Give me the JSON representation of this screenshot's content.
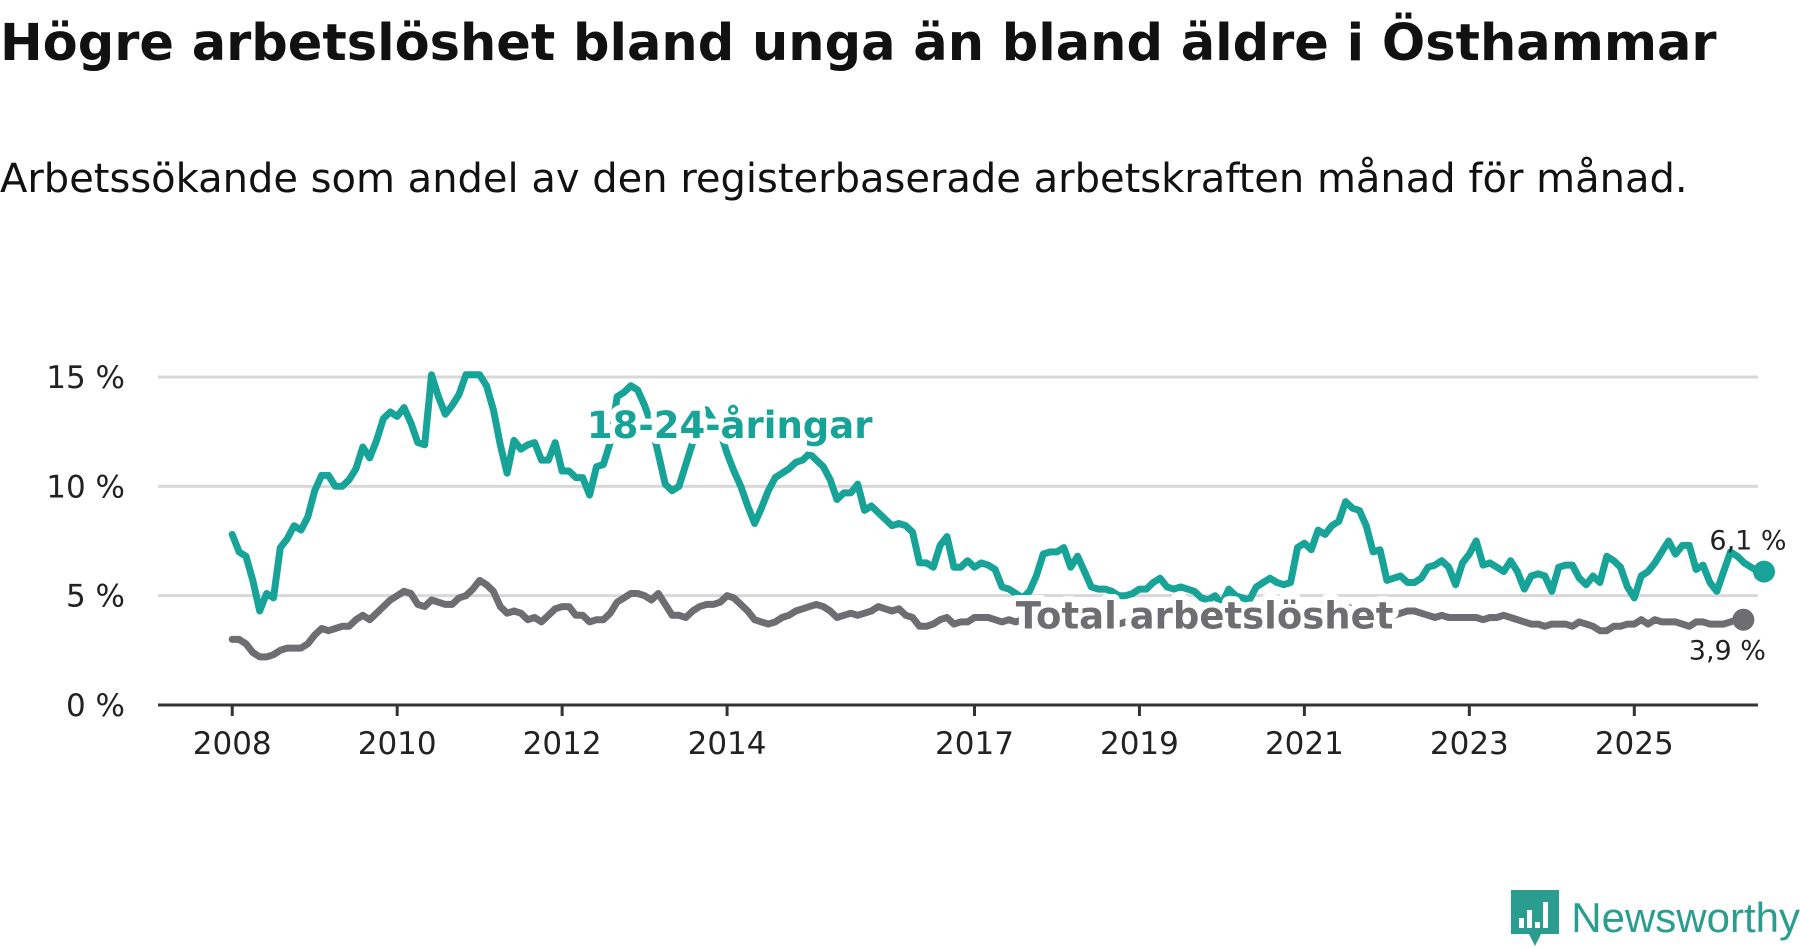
{
  "title": "Högre arbetslöshet bland unga än bland äldre i Östhammar",
  "subtitle": "Arbetssökande som andel av den registerbaserade arbetskraften månad för månad.",
  "brand": {
    "name": "Newsworthy",
    "color": "#2a9d8f",
    "icon": "bar-chart-logo-icon"
  },
  "colors": {
    "youth": "#17a398",
    "total": "#6e6e72",
    "grid": "#d8d8d8",
    "axis": "#333333"
  },
  "chart_data": {
    "type": "line",
    "x_start": 2008.0,
    "x_step": 0.083333,
    "xlim": [
      2007.1,
      2026.5
    ],
    "ylim": [
      0,
      15
    ],
    "yticks": [
      0,
      5,
      10,
      15
    ],
    "ytick_labels": [
      "0 %",
      "5 %",
      "10 %",
      "15 %"
    ],
    "xticks": [
      2008,
      2010,
      2012,
      2014,
      2017,
      2019,
      2021,
      2023,
      2025
    ],
    "xtick_labels": [
      "2008",
      "2010",
      "2012",
      "2014",
      "2017",
      "2019",
      "2021",
      "2023",
      "2025"
    ],
    "series": [
      {
        "name": "18-24-åringar",
        "color": "#17a398",
        "end_label": "6,1 %",
        "values": [
          7.8,
          7.0,
          6.8,
          5.7,
          4.3,
          5.1,
          4.9,
          7.2,
          7.6,
          8.2,
          8.0,
          8.6,
          9.8,
          10.5,
          10.5,
          10.0,
          10.0,
          10.3,
          10.8,
          11.8,
          11.3,
          12.1,
          13.1,
          13.4,
          13.2,
          13.6,
          12.9,
          12.0,
          11.9,
          15.1,
          14.1,
          13.3,
          13.7,
          14.2,
          15.1,
          15.1,
          15.1,
          14.6,
          13.5,
          11.9,
          10.6,
          12.1,
          11.7,
          11.9,
          12.0,
          11.2,
          11.2,
          12.0,
          10.7,
          10.7,
          10.4,
          10.4,
          9.6,
          10.9,
          11.0,
          12.0,
          14.1,
          14.3,
          14.6,
          14.4,
          13.7,
          12.8,
          11.5,
          10.1,
          9.8,
          10.0,
          11.0,
          12.0,
          13.0,
          13.5,
          13.0,
          12.5,
          11.5,
          10.7,
          10.0,
          9.1,
          8.3,
          9.0,
          9.8,
          10.4,
          10.6,
          10.8,
          11.1,
          11.2,
          11.5,
          11.2,
          10.9,
          10.3,
          9.4,
          9.7,
          9.7,
          10.1,
          8.9,
          9.1,
          8.8,
          8.5,
          8.2,
          8.3,
          8.2,
          7.9,
          6.5,
          6.5,
          6.3,
          7.3,
          7.7,
          6.3,
          6.3,
          6.6,
          6.3,
          6.5,
          6.4,
          6.2,
          5.4,
          5.3,
          5.1,
          4.9,
          5.2,
          5.9,
          6.9,
          7.0,
          7.0,
          7.2,
          6.3,
          6.8,
          6.1,
          5.4,
          5.3,
          5.3,
          5.2,
          5.0,
          5.0,
          5.1,
          5.3,
          5.3,
          5.6,
          5.8,
          5.4,
          5.3,
          5.4,
          5.3,
          5.2,
          4.9,
          4.8,
          5.0,
          4.6,
          5.3,
          5.0,
          4.9,
          4.8,
          5.4,
          5.6,
          5.8,
          5.6,
          5.5,
          5.6,
          7.2,
          7.4,
          7.1,
          8.0,
          7.8,
          8.2,
          8.4,
          9.3,
          9.0,
          8.9,
          8.2,
          7.0,
          7.1,
          5.7,
          5.8,
          5.9,
          5.6,
          5.6,
          5.8,
          6.3,
          6.4,
          6.6,
          6.3,
          5.5,
          6.5,
          6.9,
          7.5,
          6.4,
          6.5,
          6.3,
          6.1,
          6.6,
          6.1,
          5.3,
          5.9,
          6.0,
          5.9,
          5.2,
          6.3,
          6.4,
          6.4,
          5.8,
          5.5,
          5.9,
          5.6,
          6.8,
          6.6,
          6.3,
          5.4,
          4.9,
          5.9,
          6.1,
          6.5,
          7.0,
          7.5,
          6.9,
          7.3,
          7.3,
          6.2,
          6.4,
          5.6,
          5.2,
          6.1,
          7.0,
          6.8,
          6.5,
          6.3,
          6.1
        ]
      },
      {
        "name": "Total arbetslöshet",
        "color": "#6e6e72",
        "end_label": "3,9 %",
        "values": [
          3.0,
          3.0,
          2.8,
          2.4,
          2.2,
          2.2,
          2.3,
          2.5,
          2.6,
          2.6,
          2.6,
          2.8,
          3.2,
          3.5,
          3.4,
          3.5,
          3.6,
          3.6,
          3.9,
          4.1,
          3.9,
          4.2,
          4.5,
          4.8,
          5.0,
          5.2,
          5.1,
          4.6,
          4.5,
          4.8,
          4.7,
          4.6,
          4.6,
          4.9,
          5.0,
          5.3,
          5.7,
          5.5,
          5.2,
          4.5,
          4.2,
          4.3,
          4.2,
          3.9,
          4.0,
          3.8,
          4.1,
          4.4,
          4.5,
          4.5,
          4.1,
          4.1,
          3.8,
          3.9,
          3.9,
          4.2,
          4.7,
          4.9,
          5.1,
          5.1,
          5.0,
          4.8,
          5.1,
          4.6,
          4.1,
          4.1,
          4.0,
          4.3,
          4.5,
          4.6,
          4.6,
          4.7,
          5.0,
          4.9,
          4.6,
          4.3,
          3.9,
          3.8,
          3.7,
          3.8,
          4.0,
          4.1,
          4.3,
          4.4,
          4.5,
          4.6,
          4.5,
          4.3,
          4.0,
          4.1,
          4.2,
          4.1,
          4.2,
          4.3,
          4.5,
          4.4,
          4.3,
          4.4,
          4.1,
          4.0,
          3.6,
          3.6,
          3.7,
          3.9,
          4.0,
          3.7,
          3.8,
          3.8,
          4.0,
          4.0,
          4.0,
          3.9,
          3.8,
          3.9,
          3.8,
          3.9,
          3.9,
          4.0,
          4.0,
          4.0,
          4.0,
          4.1,
          3.9,
          4.0,
          3.9,
          3.8,
          3.9,
          3.9,
          3.8,
          3.7,
          3.8,
          3.8,
          3.9,
          4.0,
          4.0,
          3.9,
          3.8,
          3.8,
          3.9,
          3.8,
          3.7,
          3.6,
          3.7,
          3.6,
          3.7,
          3.8,
          3.7,
          3.7,
          3.8,
          3.9,
          4.0,
          4.0,
          3.9,
          4.1,
          4.2,
          4.1,
          4.3,
          4.4,
          4.5,
          4.6,
          4.7,
          4.6,
          4.5,
          4.4,
          4.3,
          4.3,
          4.2,
          4.1,
          4.0,
          4.1,
          4.2,
          4.3,
          4.3,
          4.2,
          4.1,
          4.0,
          4.1,
          4.0,
          4.0,
          4.0,
          4.0,
          4.0,
          3.9,
          4.0,
          4.0,
          4.1,
          4.0,
          3.9,
          3.8,
          3.7,
          3.7,
          3.6,
          3.7,
          3.7,
          3.7,
          3.6,
          3.8,
          3.7,
          3.6,
          3.4,
          3.4,
          3.6,
          3.6,
          3.7,
          3.7,
          3.9,
          3.7,
          3.9,
          3.8,
          3.8,
          3.8,
          3.7,
          3.6,
          3.8,
          3.8,
          3.7,
          3.7,
          3.7,
          3.8,
          3.9
        ]
      }
    ]
  }
}
